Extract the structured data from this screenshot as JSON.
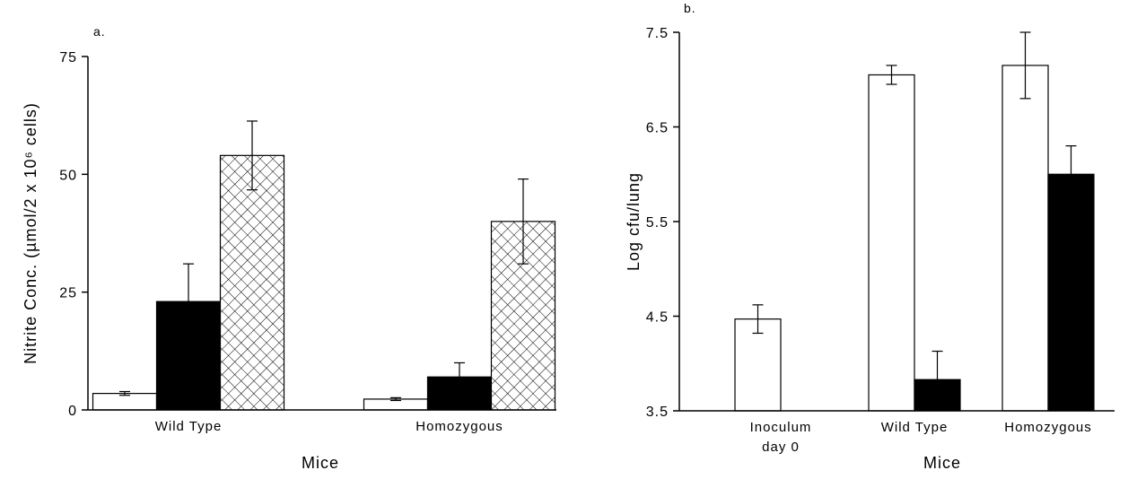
{
  "chart_data": [
    {
      "type": "bar",
      "label": "a.",
      "ylabel": "Nitrite Conc. (µmol/2 x 10⁶ cells)",
      "xlabel": "Mice",
      "categories": [
        "Wild Type",
        "Homozygous"
      ],
      "series": [
        {
          "color": "#ffffff",
          "values": [
            3.5,
            2.3
          ],
          "errors": [
            0.4,
            0.3
          ]
        },
        {
          "color": "#000000",
          "values": [
            23,
            7
          ],
          "errors": [
            8,
            3
          ]
        },
        {
          "color": "#ffffff",
          "hatch": "crosshatch",
          "values": [
            54,
            40
          ],
          "errors": [
            7.3,
            9
          ]
        }
      ],
      "ylim": [
        0,
        75
      ],
      "yticks": [
        0,
        25,
        50,
        75
      ]
    },
    {
      "type": "bar",
      "label": "b.",
      "ylabel": "Log cfu/lung",
      "xlabel": "Mice",
      "categories": [
        "Inoculum day 0",
        "Wild Type",
        "Homozygous"
      ],
      "series": [
        {
          "color": "#ffffff",
          "values": [
            4.47,
            7.05,
            7.15
          ],
          "errors": [
            0.15,
            0.1,
            0.35
          ]
        },
        {
          "color": "#000000",
          "values": [
            null,
            3.83,
            6.0
          ],
          "errors": [
            null,
            0.3,
            0.3
          ]
        }
      ],
      "ylim": [
        3.5,
        7.5
      ],
      "yticks": [
        3.5,
        4.5,
        5.5,
        6.5,
        7.5
      ]
    }
  ]
}
